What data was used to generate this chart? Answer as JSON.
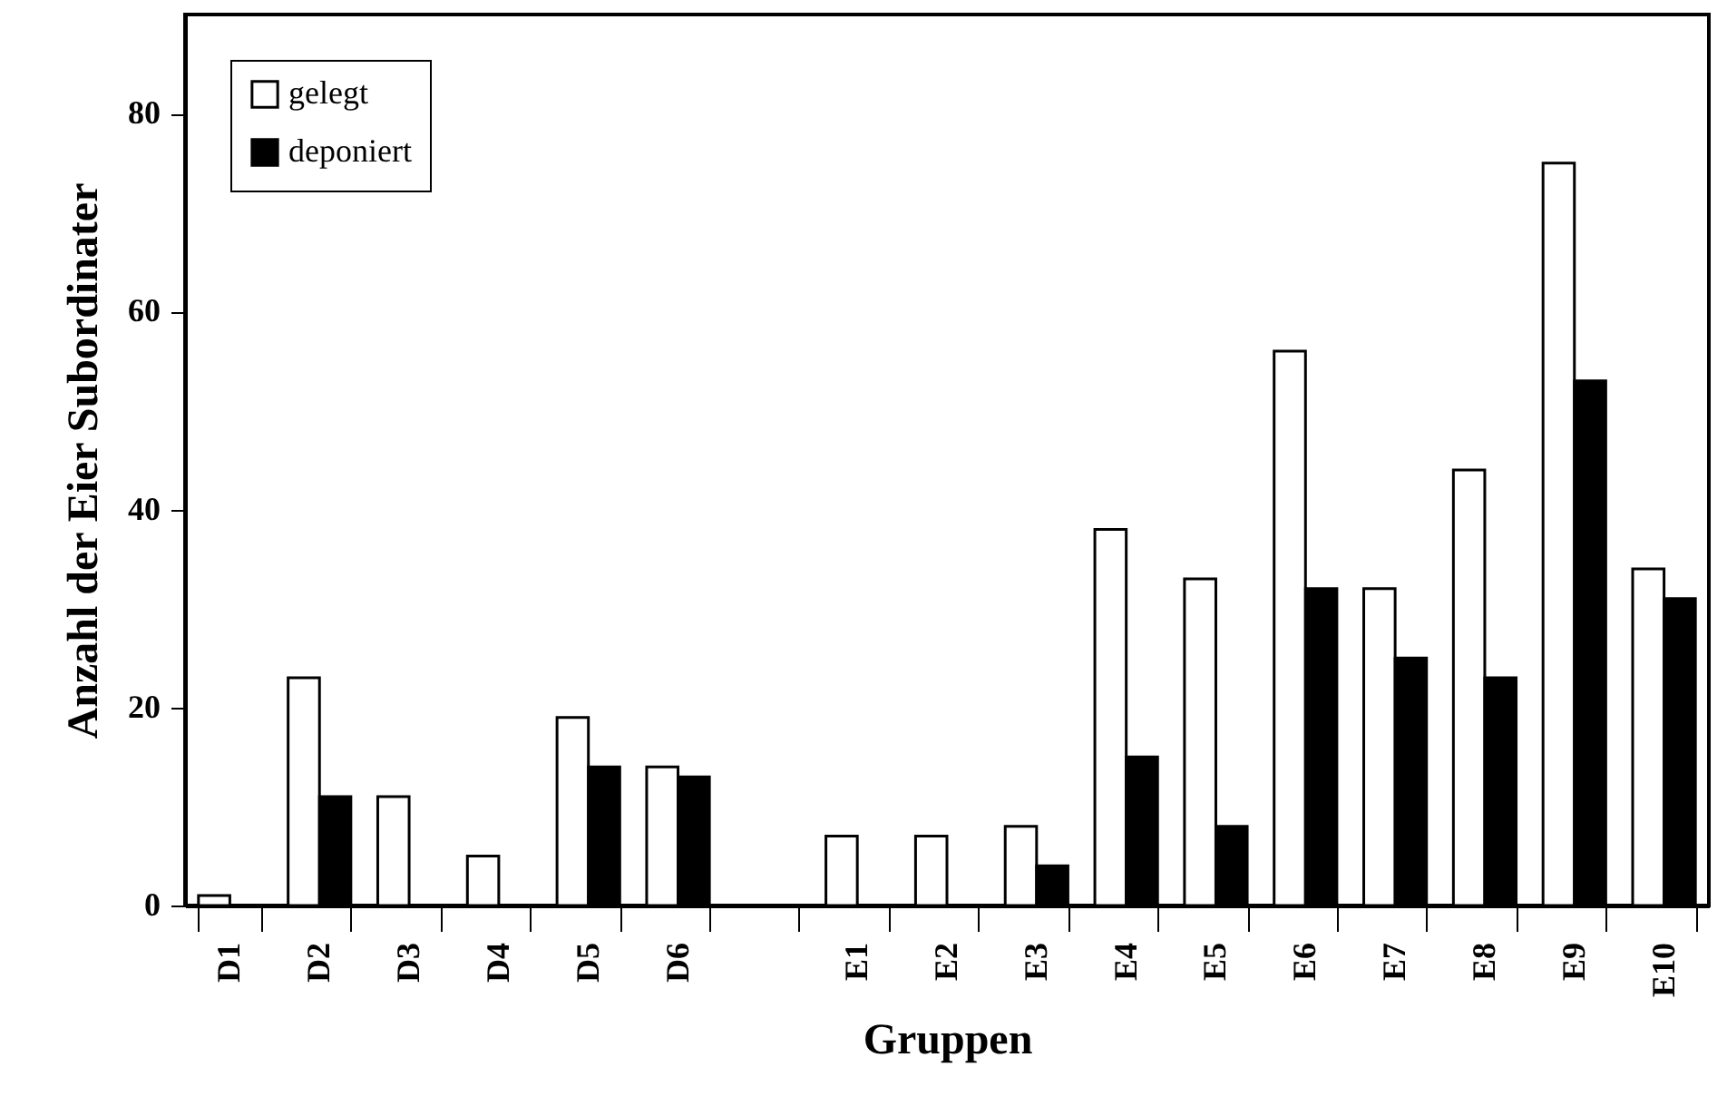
{
  "chart_data": {
    "type": "bar",
    "xlabel": "Gruppen",
    "ylabel": "Anzahl der Eier Subordinater",
    "categories": [
      "D1",
      "D2",
      "D3",
      "D4",
      "D5",
      "D6",
      null,
      "E1",
      "E2",
      "E3",
      "E4",
      "E5",
      "E6",
      "E7",
      "E8",
      "E9",
      "E10"
    ],
    "series": [
      {
        "name": "gelegt",
        "color": "#ffffff",
        "values": [
          1,
          23,
          11,
          5,
          19,
          14,
          null,
          7,
          7,
          8,
          38,
          33,
          56,
          32,
          44,
          75,
          34
        ]
      },
      {
        "name": "deponiert",
        "color": "#000000",
        "values": [
          0,
          11,
          0,
          0,
          14,
          13,
          null,
          0,
          0,
          4,
          15,
          8,
          32,
          25,
          23,
          53,
          31
        ]
      }
    ],
    "ylim": [
      0,
      90
    ],
    "yticks": [
      0,
      20,
      40,
      60,
      80
    ],
    "grid": false,
    "legend": "top left"
  }
}
